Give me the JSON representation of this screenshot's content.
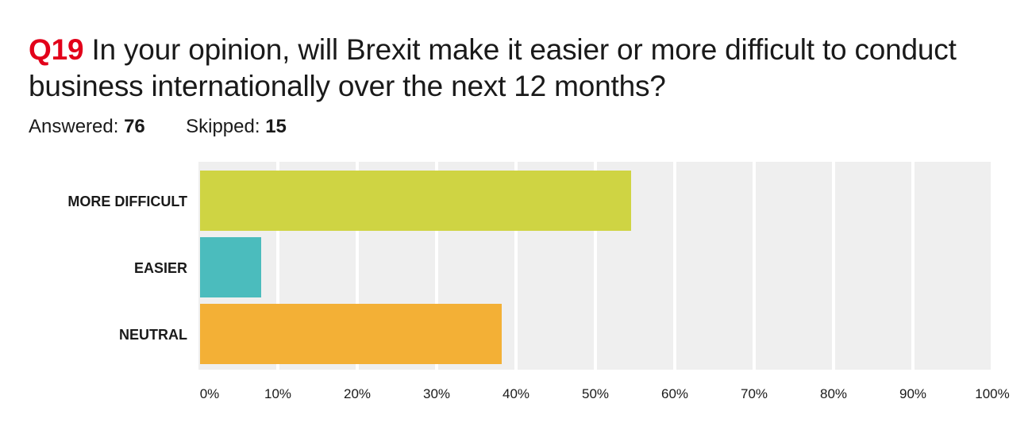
{
  "question": {
    "number": "Q19",
    "text": "In your opinion, will Brexit make it easier or more difficult to conduct business internationally over the next 12 months?"
  },
  "stats": {
    "answered_label": "Answered:",
    "answered_value": "76",
    "skipped_label": "Skipped:",
    "skipped_value": "15"
  },
  "colors": {
    "accent": "#e2001a",
    "plot_background": "#efefef",
    "gridline": "#ffffff"
  },
  "chart_data": {
    "type": "bar",
    "orientation": "horizontal",
    "categories": [
      "MORE DIFFICULT",
      "EASIER",
      "NEUTRAL"
    ],
    "values": [
      54.5,
      7.9,
      38.2
    ],
    "colors": [
      "#cfd443",
      "#4bbcbd",
      "#f3b036"
    ],
    "xlim": [
      0,
      100
    ],
    "ticks": [
      0,
      10,
      20,
      30,
      40,
      50,
      60,
      70,
      80,
      90,
      100
    ],
    "tick_labels": [
      "0%",
      "10%",
      "20%",
      "30%",
      "40%",
      "50%",
      "60%",
      "70%",
      "80%",
      "90%",
      "100%"
    ],
    "grid": true
  }
}
